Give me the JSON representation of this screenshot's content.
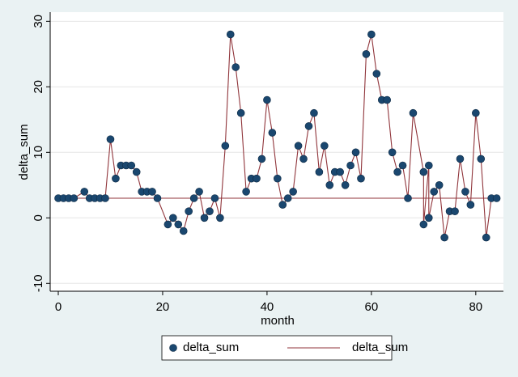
{
  "chart_data": {
    "type": "line",
    "x_label": "month",
    "y_label": "delta_sum",
    "x": [
      0,
      1,
      2,
      3,
      5,
      6,
      7,
      8,
      9,
      10,
      11,
      12,
      13,
      14,
      15,
      16,
      17,
      18,
      19,
      21,
      22,
      23,
      24,
      25,
      26,
      27,
      28,
      29,
      30,
      31,
      32,
      33,
      34,
      35,
      36,
      37,
      38,
      39,
      40,
      41,
      42,
      43,
      44,
      45,
      46,
      47,
      48,
      49,
      50,
      51,
      52,
      53,
      54,
      55,
      56,
      57,
      58,
      59,
      60,
      61,
      62,
      63,
      64,
      65,
      66,
      67,
      68,
      70,
      70,
      71,
      71,
      72,
      73,
      74,
      75,
      76,
      77,
      78,
      79,
      80,
      81,
      82,
      83,
      84
    ],
    "series": [
      {
        "name": "delta_sum",
        "color": "#1a476f",
        "marker": "circle",
        "values": [
          3,
          3,
          3,
          3,
          4,
          3,
          3,
          3,
          3,
          12,
          6,
          8,
          8,
          8,
          7,
          4,
          4,
          4,
          3,
          -1,
          0,
          -1,
          -2,
          1,
          3,
          4,
          0,
          1,
          3,
          0,
          11,
          28,
          23,
          16,
          4,
          6,
          6,
          9,
          18,
          13,
          6,
          2,
          3,
          4,
          11,
          9,
          14,
          16,
          7,
          11,
          5,
          7,
          7,
          5,
          8,
          10,
          6,
          25,
          28,
          22,
          18,
          18,
          10,
          7,
          8,
          3,
          16,
          7,
          -1,
          8,
          0,
          4,
          5,
          -3,
          1,
          1,
          9,
          4,
          2,
          16,
          9,
          -3,
          3,
          3
        ]
      },
      {
        "name": "delta_sum",
        "color": "#90353b",
        "marker": "none",
        "values": [
          3,
          3,
          3,
          3,
          4,
          3,
          3,
          3,
          3,
          12,
          6,
          8,
          8,
          8,
          7,
          4,
          4,
          4,
          3,
          -1,
          0,
          -1,
          -2,
          1,
          3,
          4,
          0,
          1,
          3,
          0,
          11,
          28,
          23,
          16,
          4,
          6,
          6,
          9,
          18,
          13,
          6,
          2,
          3,
          4,
          11,
          9,
          14,
          16,
          7,
          11,
          5,
          7,
          7,
          5,
          8,
          10,
          6,
          25,
          28,
          22,
          18,
          18,
          10,
          7,
          8,
          3,
          16,
          7,
          -1,
          8,
          0,
          4,
          5,
          -3,
          1,
          1,
          9,
          4,
          2,
          16,
          9,
          -3,
          3,
          3
        ]
      }
    ],
    "xlim": [
      -1.55,
      85.3
    ],
    "xticks": [
      0,
      20,
      40,
      60,
      80
    ],
    "ylim": [
      -11.2,
      31.4
    ],
    "yticks": [
      -10,
      0,
      10,
      20,
      30
    ],
    "grid": true,
    "legend": "bottom"
  }
}
